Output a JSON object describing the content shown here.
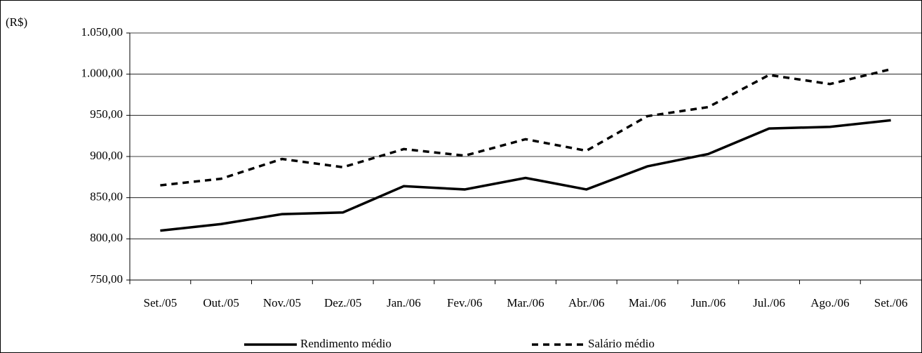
{
  "chart_data": {
    "type": "line",
    "y_unit": "(R$)",
    "categories": [
      "Set./05",
      "Out./05",
      "Nov./05",
      "Dez./05",
      "Jan./06",
      "Fev./06",
      "Mar./06",
      "Abr./06",
      "Mai./06",
      "Jun./06",
      "Jul./06",
      "Ago./06",
      "Set./06"
    ],
    "series": [
      {
        "name": "Rendimento médio",
        "color": "#000000",
        "line_style": "solid",
        "values": [
          810,
          818,
          830,
          832,
          864,
          860,
          874,
          860,
          888,
          903,
          934,
          936,
          944
        ]
      },
      {
        "name": "Salário médio",
        "color": "#000000",
        "line_style": "dashed",
        "values": [
          865,
          873,
          897,
          887,
          909,
          901,
          921,
          907,
          949,
          960,
          999,
          988,
          1006
        ]
      }
    ],
    "ylim": [
      750,
      1050
    ],
    "yticks": [
      {
        "value": 750,
        "label": "750,00"
      },
      {
        "value": 800,
        "label": "800,00"
      },
      {
        "value": 850,
        "label": "850,00"
      },
      {
        "value": 900,
        "label": "900,00"
      },
      {
        "value": 950,
        "label": "950,00"
      },
      {
        "value": 1000,
        "label": "1.000,00"
      },
      {
        "value": 1050,
        "label": "1.050,00"
      }
    ],
    "grid": true,
    "legend": "bottom"
  }
}
